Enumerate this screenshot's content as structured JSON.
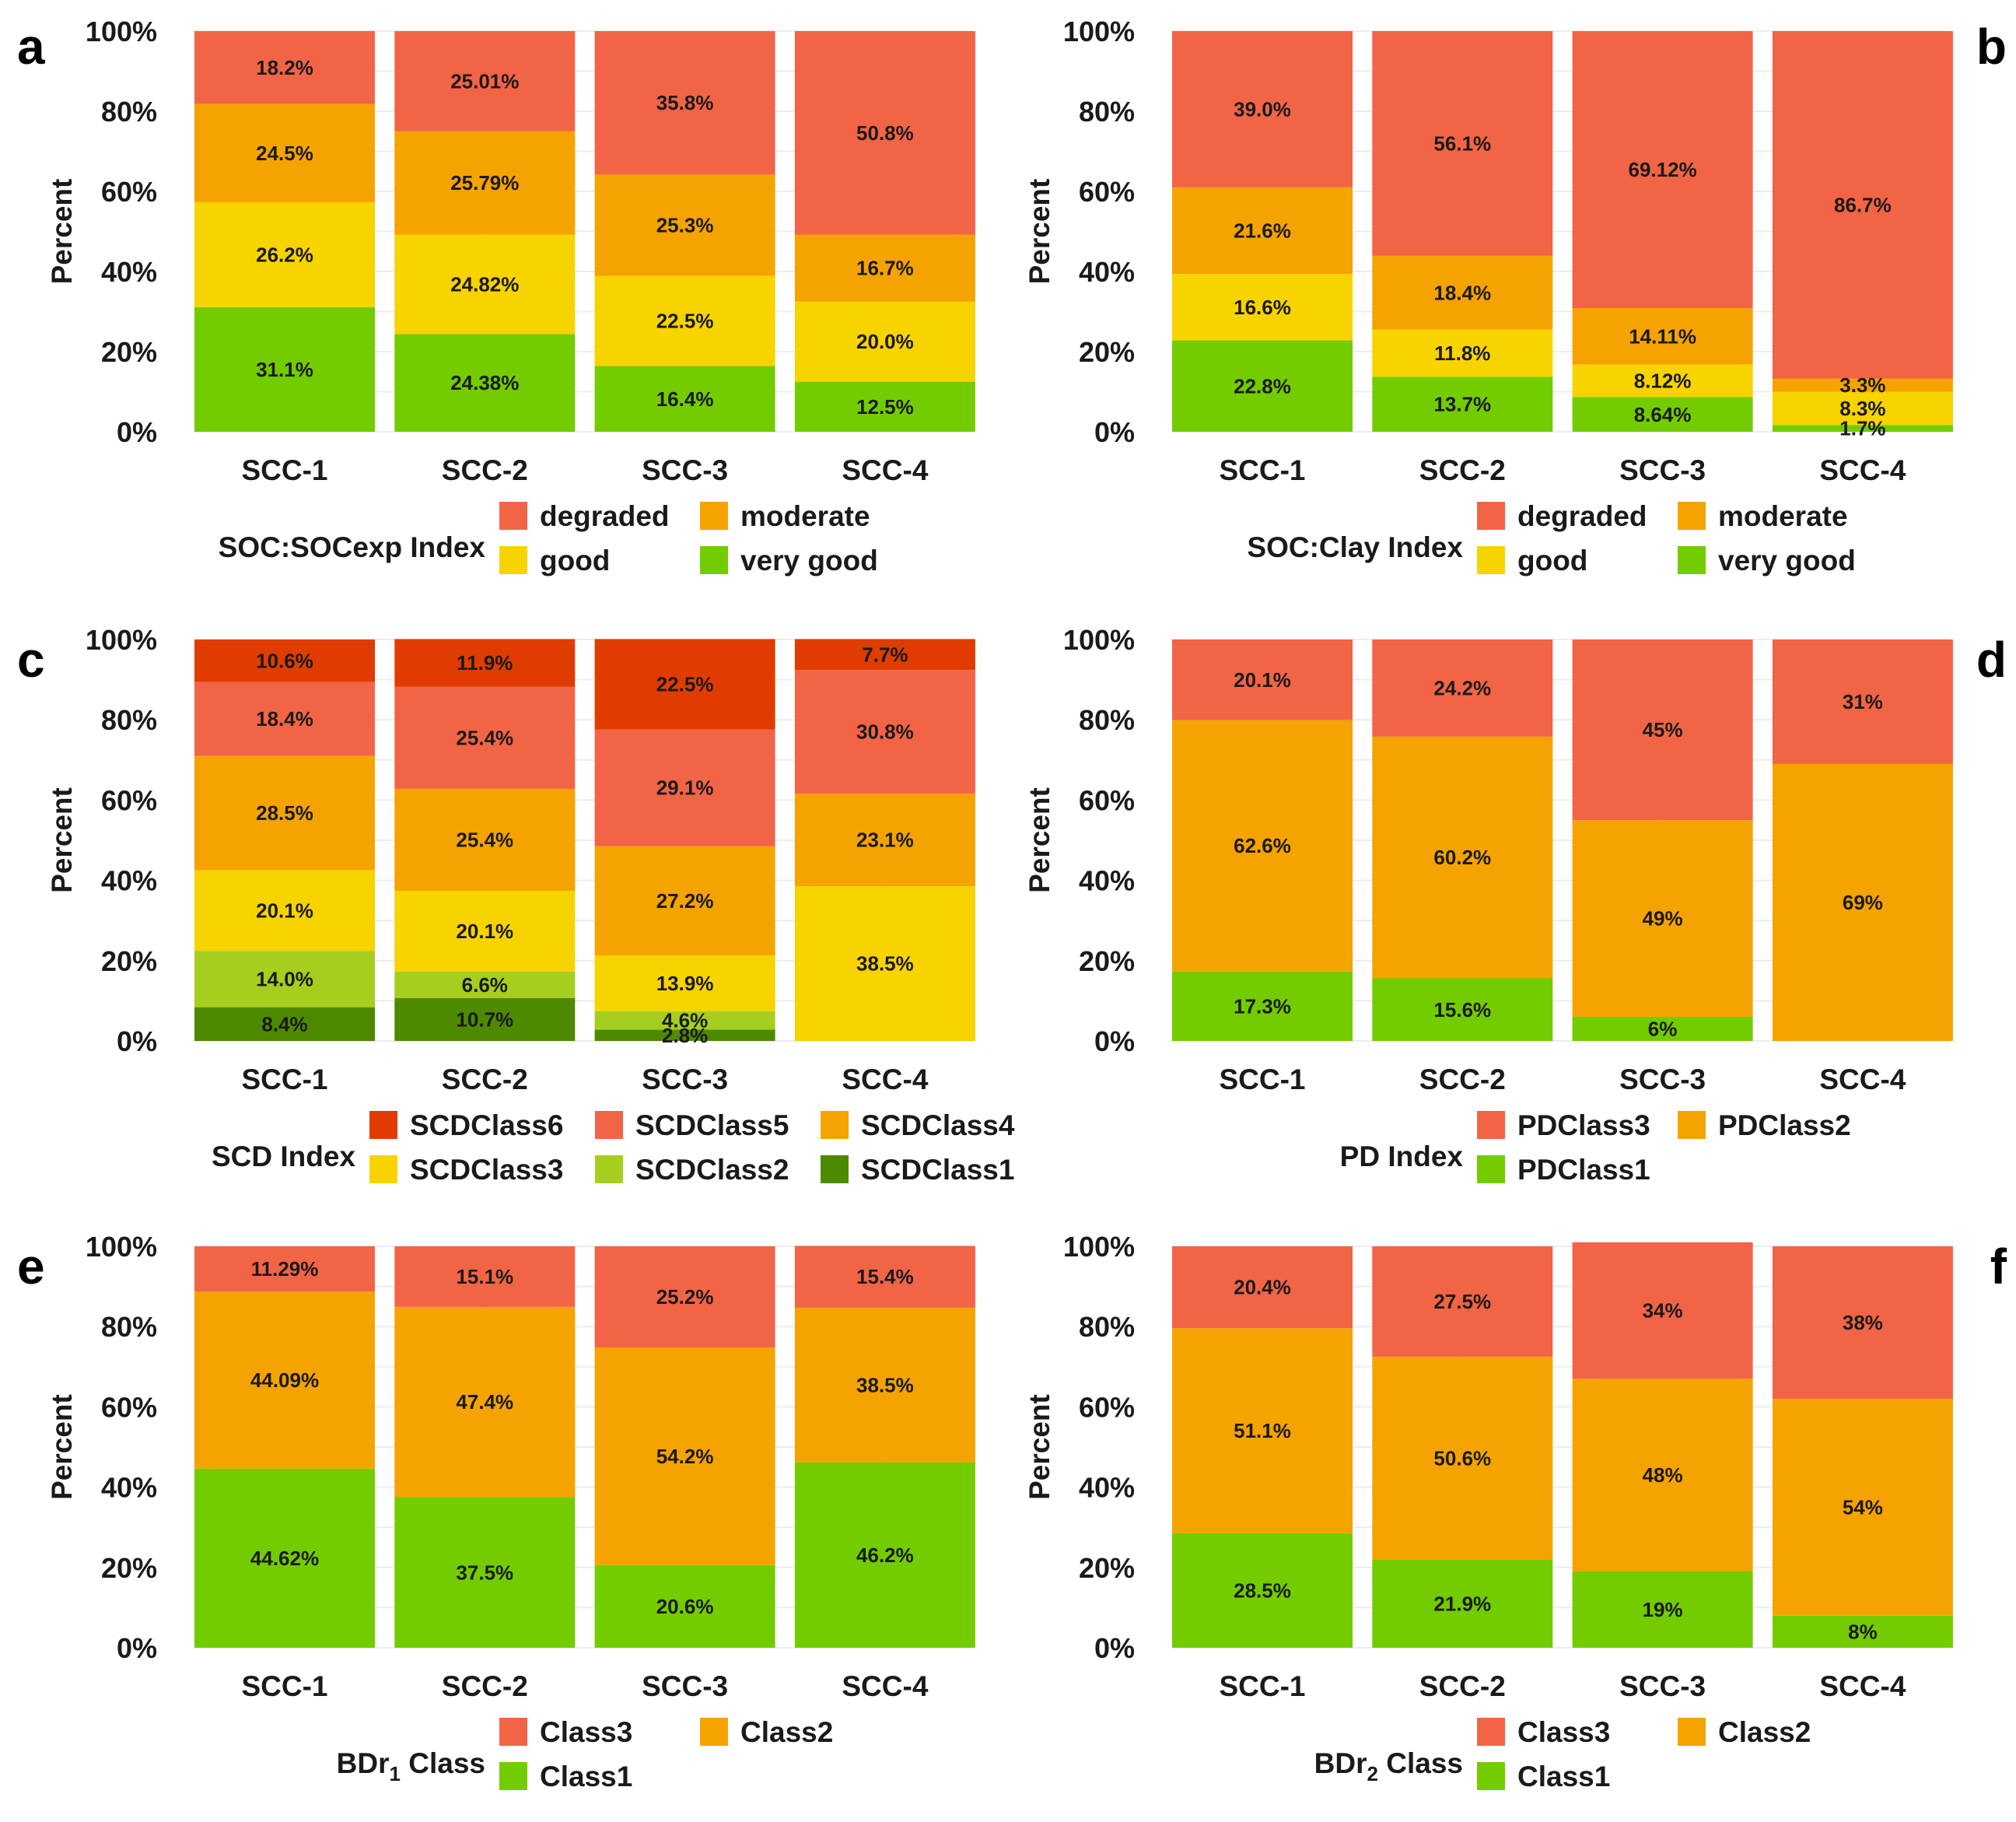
{
  "colors": {
    "degraded": "#F26446",
    "moderate": "#F5A300",
    "good": "#F7D300",
    "very_good": "#73CC00",
    "scd6": "#E03C00",
    "scd5": "#F26446",
    "scd4": "#F5A300",
    "scd3": "#F7D300",
    "scd2": "#A6CE1E",
    "scd1": "#4E8A00"
  },
  "chart_data": [
    {
      "panel": "a",
      "type": "bar",
      "stacked": true,
      "categories": [
        "SCC-1",
        "SCC-2",
        "SCC-3",
        "SCC-4"
      ],
      "ylabel": "Percent",
      "yticks": [
        "0%",
        "20%",
        "40%",
        "60%",
        "80%",
        "100%"
      ],
      "ylim": [
        0,
        100
      ],
      "legend_title": "SOC:SOCexp Index",
      "legend_cols": 2,
      "legend_order": [
        "degraded",
        "moderate",
        "good",
        "very good"
      ],
      "series": [
        {
          "name": "very good",
          "color_key": "very_good",
          "values": [
            31.1,
            24.38,
            16.4,
            12.5
          ],
          "labels": [
            "31.1%",
            "24.38%",
            "16.4%",
            "12.5%"
          ]
        },
        {
          "name": "good",
          "color_key": "good",
          "values": [
            26.2,
            24.82,
            22.5,
            20.0
          ],
          "labels": [
            "26.2%",
            "24.82%",
            "22.5%",
            "20.0%"
          ]
        },
        {
          "name": "moderate",
          "color_key": "moderate",
          "values": [
            24.5,
            25.79,
            25.3,
            16.7
          ],
          "labels": [
            "24.5%",
            "25.79%",
            "25.3%",
            "16.7%"
          ]
        },
        {
          "name": "degraded",
          "color_key": "degraded",
          "values": [
            18.2,
            25.01,
            35.8,
            50.8
          ],
          "labels": [
            "18.2%",
            "25.01%",
            "35.8%",
            "50.8%"
          ]
        }
      ]
    },
    {
      "panel": "b",
      "type": "bar",
      "stacked": true,
      "categories": [
        "SCC-1",
        "SCC-2",
        "SCC-3",
        "SCC-4"
      ],
      "ylabel": "Percent",
      "yticks": [
        "0%",
        "20%",
        "40%",
        "60%",
        "80%",
        "100%"
      ],
      "ylim": [
        0,
        100
      ],
      "legend_title": "SOC:Clay Index",
      "legend_cols": 2,
      "legend_order": [
        "degraded",
        "moderate",
        "good",
        "very good"
      ],
      "series": [
        {
          "name": "very good",
          "color_key": "very_good",
          "values": [
            22.8,
            13.7,
            8.64,
            1.7
          ],
          "labels": [
            "22.8%",
            "13.7%",
            "8.64%",
            "1.7%"
          ]
        },
        {
          "name": "good",
          "color_key": "good",
          "values": [
            16.6,
            11.8,
            8.12,
            8.3
          ],
          "labels": [
            "16.6%",
            "11.8%",
            "8.12%",
            "8.3%"
          ]
        },
        {
          "name": "moderate",
          "color_key": "moderate",
          "values": [
            21.6,
            18.4,
            14.11,
            3.3
          ],
          "labels": [
            "21.6%",
            "18.4%",
            "14.11%",
            "3.3%"
          ]
        },
        {
          "name": "degraded",
          "color_key": "degraded",
          "values": [
            39.0,
            56.1,
            69.12,
            86.7
          ],
          "labels": [
            "39.0%",
            "56.1%",
            "69.12%",
            "86.7%"
          ]
        }
      ]
    },
    {
      "panel": "c",
      "type": "bar",
      "stacked": true,
      "categories": [
        "SCC-1",
        "SCC-2",
        "SCC-3",
        "SCC-4"
      ],
      "ylabel": "Percent",
      "yticks": [
        "0%",
        "20%",
        "40%",
        "60%",
        "80%",
        "100%"
      ],
      "ylim": [
        0,
        100
      ],
      "legend_title": "SCD Index",
      "legend_cols": 3,
      "legend_order": [
        "SCDClass6",
        "SCDClass5",
        "SCDClass4",
        "SCDClass3",
        "SCDClass2",
        "SCDClass1"
      ],
      "series": [
        {
          "name": "SCDClass1",
          "color_key": "scd1",
          "values": [
            8.4,
            10.7,
            2.8,
            0
          ],
          "labels": [
            "8.4%",
            "10.7%",
            "2.8%",
            ""
          ]
        },
        {
          "name": "SCDClass2",
          "color_key": "scd2",
          "values": [
            14.0,
            6.6,
            4.6,
            0
          ],
          "labels": [
            "14.0%",
            "6.6%",
            "4.6%",
            ""
          ]
        },
        {
          "name": "SCDClass3",
          "color_key": "scd3",
          "values": [
            20.1,
            20.1,
            13.9,
            38.5
          ],
          "labels": [
            "20.1%",
            "20.1%",
            "13.9%",
            "38.5%"
          ]
        },
        {
          "name": "SCDClass4",
          "color_key": "scd4",
          "values": [
            28.5,
            25.4,
            27.2,
            23.1
          ],
          "labels": [
            "28.5%",
            "25.4%",
            "27.2%",
            "23.1%"
          ]
        },
        {
          "name": "SCDClass5",
          "color_key": "scd5",
          "values": [
            18.4,
            25.4,
            29.1,
            30.8
          ],
          "labels": [
            "18.4%",
            "25.4%",
            "29.1%",
            "30.8%"
          ]
        },
        {
          "name": "SCDClass6",
          "color_key": "scd6",
          "values": [
            10.6,
            11.9,
            22.5,
            7.7
          ],
          "labels": [
            "10.6%",
            "11.9%",
            "22.5%",
            "7.7%"
          ]
        }
      ]
    },
    {
      "panel": "d",
      "type": "bar",
      "stacked": true,
      "categories": [
        "SCC-1",
        "SCC-2",
        "SCC-3",
        "SCC-4"
      ],
      "ylabel": "Percent",
      "yticks": [
        "0%",
        "20%",
        "40%",
        "60%",
        "80%",
        "100%"
      ],
      "ylim": [
        0,
        100
      ],
      "legend_title": "PD Index",
      "legend_cols": 2,
      "legend_order": [
        "PDClass3",
        "PDClass2",
        "PDClass1"
      ],
      "series": [
        {
          "name": "PDClass1",
          "color_key": "very_good",
          "values": [
            17.3,
            15.6,
            6,
            0
          ],
          "labels": [
            "17.3%",
            "15.6%",
            "6%",
            ""
          ]
        },
        {
          "name": "PDClass2",
          "color_key": "moderate",
          "values": [
            62.6,
            60.2,
            49,
            69
          ],
          "labels": [
            "62.6%",
            "60.2%",
            "49%",
            "69%"
          ]
        },
        {
          "name": "PDClass3",
          "color_key": "degraded",
          "values": [
            20.1,
            24.2,
            45,
            31
          ],
          "labels": [
            "20.1%",
            "24.2%",
            "45%",
            "31%"
          ]
        }
      ]
    },
    {
      "panel": "e",
      "type": "bar",
      "stacked": true,
      "categories": [
        "SCC-1",
        "SCC-2",
        "SCC-3",
        "SCC-4"
      ],
      "ylabel": "Percent",
      "yticks": [
        "0%",
        "20%",
        "40%",
        "60%",
        "80%",
        "100%"
      ],
      "ylim": [
        0,
        100
      ],
      "legend_title": "BDr",
      "legend_title_sub": "1",
      "legend_title_suffix": " Class",
      "legend_cols": 2,
      "legend_order": [
        "Class3",
        "Class2",
        "Class1"
      ],
      "series": [
        {
          "name": "Class1",
          "color_key": "very_good",
          "values": [
            44.62,
            37.5,
            20.6,
            46.2
          ],
          "labels": [
            "44.62%",
            "37.5%",
            "20.6%",
            "46.2%"
          ]
        },
        {
          "name": "Class2",
          "color_key": "moderate",
          "values": [
            44.09,
            47.4,
            54.2,
            38.5
          ],
          "labels": [
            "44.09%",
            "47.4%",
            "54.2%",
            "38.5%"
          ]
        },
        {
          "name": "Class3",
          "color_key": "degraded",
          "values": [
            11.29,
            15.1,
            25.2,
            15.4
          ],
          "labels": [
            "11.29%",
            "15.1%",
            "25.2%",
            "15.4%"
          ]
        }
      ]
    },
    {
      "panel": "f",
      "type": "bar",
      "stacked": true,
      "categories": [
        "SCC-1",
        "SCC-2",
        "SCC-3",
        "SCC-4"
      ],
      "ylabel": "Percent",
      "yticks": [
        "0%",
        "20%",
        "40%",
        "60%",
        "80%",
        "100%"
      ],
      "ylim": [
        0,
        100
      ],
      "legend_title": "BDr",
      "legend_title_sub": "2",
      "legend_title_suffix": " Class",
      "legend_cols": 2,
      "legend_order": [
        "Class3",
        "Class2",
        "Class1"
      ],
      "series": [
        {
          "name": "Class1",
          "color_key": "very_good",
          "values": [
            28.5,
            21.9,
            19,
            8
          ],
          "labels": [
            "28.5%",
            "21.9%",
            "19%",
            "8%"
          ]
        },
        {
          "name": "Class2",
          "color_key": "moderate",
          "values": [
            51.1,
            50.6,
            48,
            54
          ],
          "labels": [
            "51.1%",
            "50.6%",
            "48%",
            "54%"
          ]
        },
        {
          "name": "Class3",
          "color_key": "degraded",
          "values": [
            20.4,
            27.5,
            34,
            38
          ],
          "labels": [
            "20.4%",
            "27.5%",
            "34%",
            "38%"
          ]
        }
      ]
    }
  ]
}
